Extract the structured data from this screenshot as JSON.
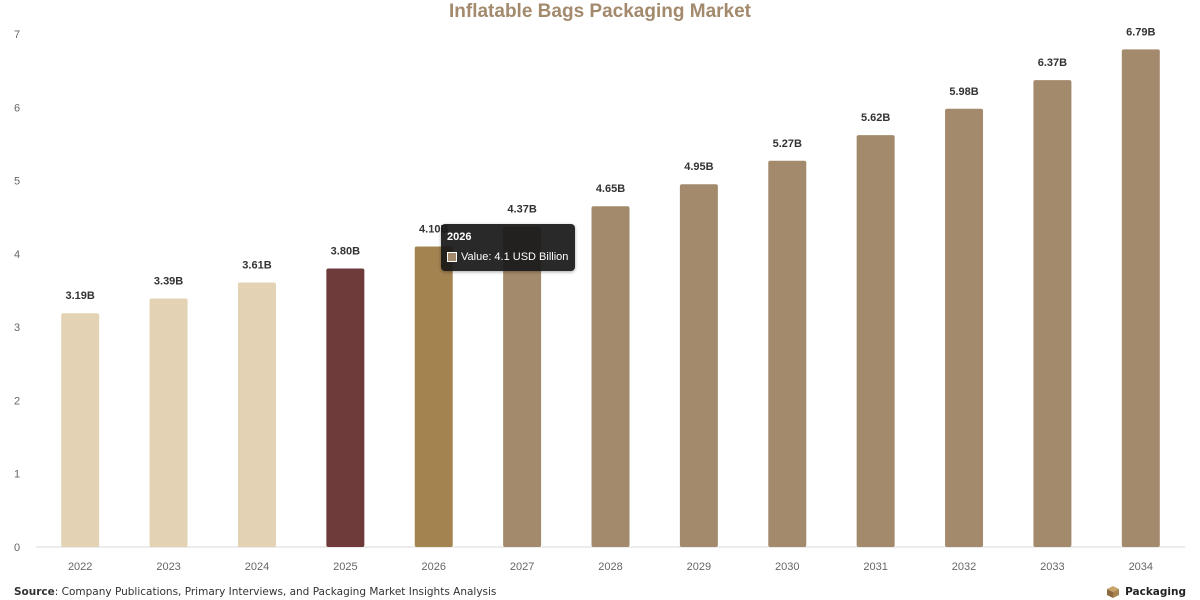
{
  "chart_data": {
    "type": "bar",
    "title": "Inflatable Bags Packaging Market",
    "categories": [
      "2022",
      "2023",
      "2024",
      "2025",
      "2026",
      "2027",
      "2028",
      "2029",
      "2030",
      "2031",
      "2032",
      "2033",
      "2034"
    ],
    "values": [
      3.19,
      3.39,
      3.61,
      3.8,
      4.1,
      4.37,
      4.65,
      4.95,
      5.27,
      5.62,
      5.98,
      6.37,
      6.79
    ],
    "value_labels": [
      "3.19B",
      "3.39B",
      "3.61B",
      "3.80B",
      "4.10B",
      "4.37B",
      "4.65B",
      "4.95B",
      "5.27B",
      "5.62B",
      "5.98B",
      "6.37B",
      "6.79B"
    ],
    "bar_colors": [
      "#e3d3b4",
      "#e3d3b4",
      "#e3d3b4",
      "#6e3a3a",
      "#a38350",
      "#a38a6c",
      "#a38a6c",
      "#a38a6c",
      "#a38a6c",
      "#a38a6c",
      "#a38a6c",
      "#a38a6c",
      "#a38a6c"
    ],
    "ylim": [
      0,
      7
    ],
    "yticks": [
      "0",
      "1",
      "2",
      "3",
      "4",
      "5",
      "6",
      "7"
    ],
    "grid": false,
    "legend": "none",
    "xlabel": "",
    "ylabel": ""
  },
  "colors": {
    "title": "#a38a6c",
    "axis_text": "#666666",
    "label_text": "#333333"
  },
  "tooltip": {
    "title": "2026",
    "text": "Value: 4.1 USD Billion",
    "swatch_color": "#a38a6c"
  },
  "source": {
    "label": "Source",
    "text": ": Company Publications, Primary Interviews, and Packaging Market Insights Analysis"
  },
  "brand": {
    "name": "Packaging",
    "icon": "box-icon"
  }
}
